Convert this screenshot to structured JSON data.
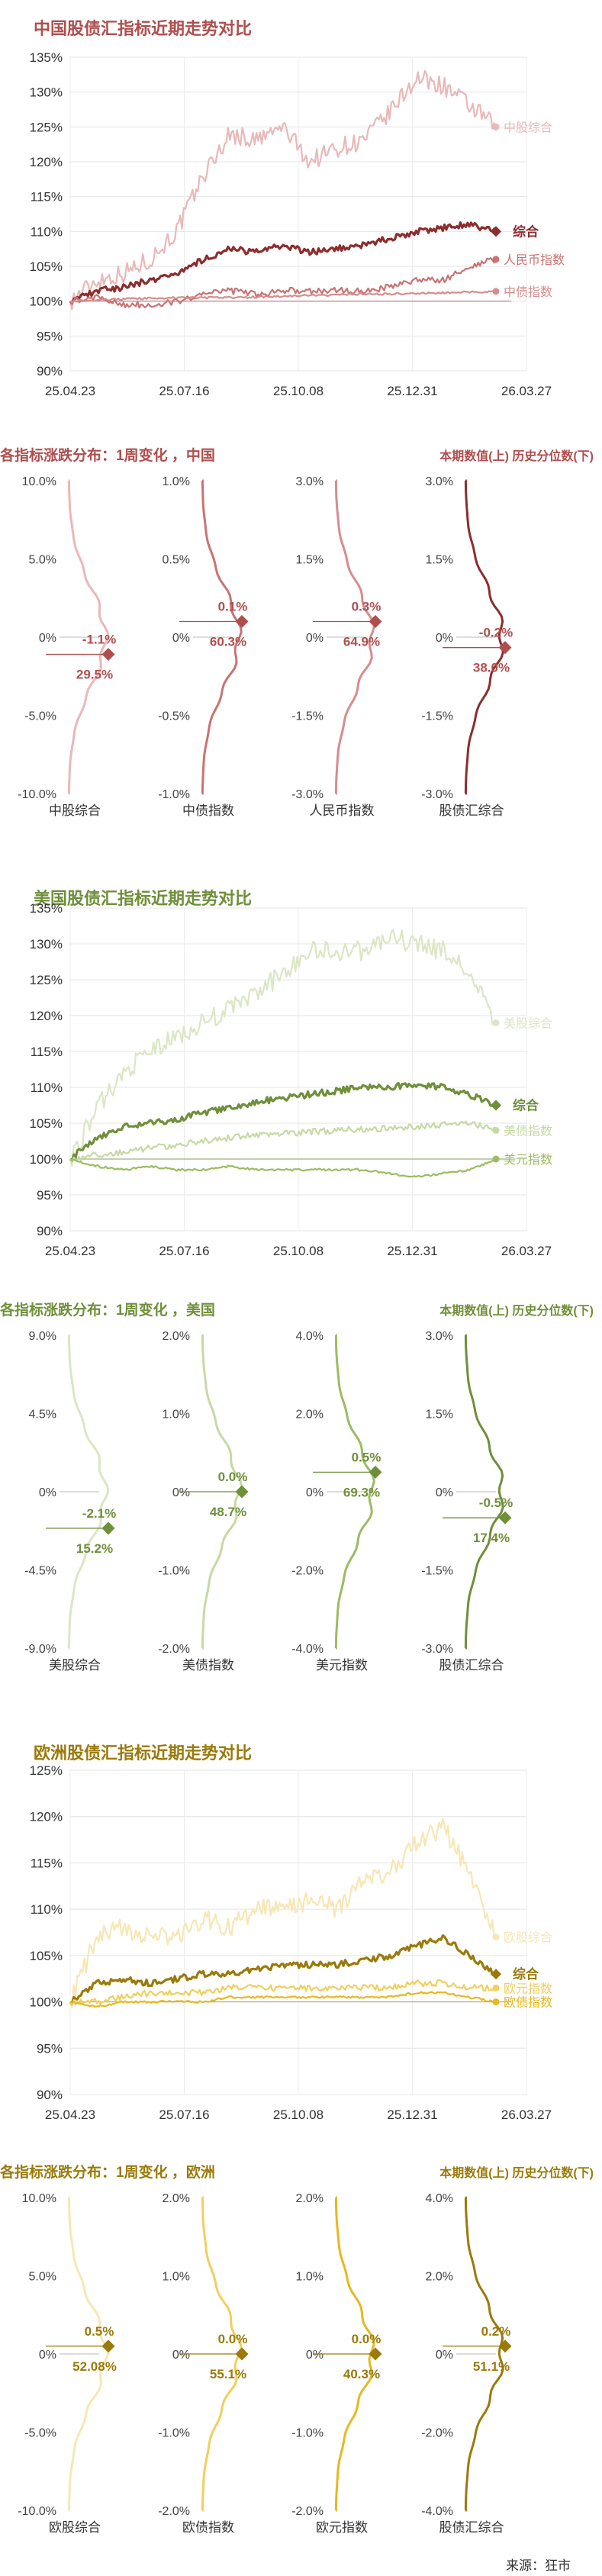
{
  "source": "来源：狂市",
  "sections": [
    {
      "theme": {
        "dark": "#b04e4e",
        "c1": "#e9b8b8",
        "c2": "#8d2d2d",
        "c3": "#c97373",
        "c4": "#d88c8c"
      },
      "trend": {
        "title": "中国股债汇指标近期走势对比",
        "ylim": [
          90,
          135
        ],
        "yticks": [
          "135%",
          "130%",
          "125%",
          "120%",
          "115%",
          "110%",
          "105%",
          "100%",
          "95%",
          "90%"
        ],
        "xticks": [
          "25.04.23",
          "25.07.16",
          "25.10.08",
          "25.12.31",
          "26.03.27"
        ]
      },
      "dist": {
        "title": "各指标涨跌分布：1周变化 ，中国",
        "legend": "本期数值(上) 历史分位数(下)",
        "panels": [
          {
            "label": "中股综合",
            "ticks": [
              "10.0%",
              "5.0%",
              "0%",
              "-5.0%",
              "-10.0%"
            ]
          },
          {
            "label": "中债指数",
            "ticks": [
              "1.0%",
              "0.5%",
              "0%",
              "-0.5%",
              "-1.0%"
            ]
          },
          {
            "label": "人民币指数",
            "ticks": [
              "3.0%",
              "1.5%",
              "0%",
              "-1.5%",
              "-3.0%"
            ]
          },
          {
            "label": "股债汇综合",
            "ticks": [
              "3.0%",
              "1.5%",
              "0%",
              "-1.5%",
              "-3.0%"
            ]
          }
        ]
      }
    },
    {
      "theme": {
        "dark": "#6f8f3a",
        "c1": "#dbe6c5",
        "c2": "#6f8f3a",
        "c3": "#c6d9a4",
        "c4": "#9cbc62"
      },
      "trend": {
        "title": "美国股债汇指标近期走势对比",
        "ylim": [
          90,
          135
        ],
        "yticks": [
          "135%",
          "130%",
          "125%",
          "120%",
          "115%",
          "110%",
          "105%",
          "100%",
          "95%",
          "90%"
        ],
        "xticks": [
          "25.04.23",
          "25.07.16",
          "25.10.08",
          "25.12.31",
          "26.03.27"
        ]
      },
      "dist": {
        "title": "各指标涨跌分布：1周变化 ，美国",
        "legend": "本期数值(上) 历史分位数(下)",
        "panels": [
          {
            "label": "美股综合",
            "ticks": [
              "9.0%",
              "4.5%",
              "0%",
              "-4.5%",
              "-9.0%"
            ]
          },
          {
            "label": "美债指数",
            "ticks": [
              "2.0%",
              "1.0%",
              "0%",
              "-1.0%",
              "-2.0%"
            ]
          },
          {
            "label": "美元指数",
            "ticks": [
              "4.0%",
              "2.0%",
              "0%",
              "-2.0%",
              "-4.0%"
            ]
          },
          {
            "label": "股债汇综合",
            "ticks": [
              "3.0%",
              "1.5%",
              "0%",
              "-1.5%",
              "-3.0%"
            ]
          }
        ]
      }
    },
    {
      "theme": {
        "dark": "#9a7a0a",
        "c1": "#f7e7b4",
        "c2": "#9a7a0a",
        "c3": "#f1cf5e",
        "c4": "#e6b922"
      },
      "trend": {
        "title": "欧洲股债汇指标近期走势对比",
        "ylim": [
          90,
          125
        ],
        "yticks": [
          "125%",
          "120%",
          "115%",
          "110%",
          "105%",
          "100%",
          "95%",
          "90%"
        ],
        "xticks": [
          "25.04.23",
          "25.07.16",
          "25.10.08",
          "25.12.31",
          "26.03.27"
        ]
      },
      "dist": {
        "title": "各指标涨跌分布：1周变化 ，欧洲",
        "legend": "本期数值(上) 历史分位数(下)",
        "panels": [
          {
            "label": "欧股综合",
            "ticks": [
              "10.0%",
              "5.0%",
              "0%",
              "-5.0%",
              "-10.0%"
            ]
          },
          {
            "label": "欧债指数",
            "ticks": [
              "2.0%",
              "1.0%",
              "0%",
              "-1.0%",
              "-2.0%"
            ]
          },
          {
            "label": "欧元指数",
            "ticks": [
              "2.0%",
              "1.0%",
              "0%",
              "-1.0%",
              "-2.0%"
            ]
          },
          {
            "label": "股债汇综合",
            "ticks": [
              "4.0%",
              "2.0%",
              "0%",
              "-2.0%",
              "-4.0%"
            ]
          }
        ]
      }
    }
  ],
  "chart_data": [
    {
      "type": "line",
      "title": "中国股债汇指标近期走势对比",
      "xlabel": "",
      "ylabel": "",
      "ylim": [
        90,
        135
      ],
      "x": [
        "25.04.23",
        "25.05.14",
        "25.06.04",
        "25.06.25",
        "25.07.16",
        "25.08.06",
        "25.08.27",
        "25.09.17",
        "25.10.08",
        "25.10.29",
        "25.11.19",
        "25.12.10",
        "25.12.31",
        "26.01.21",
        "26.02.11",
        "26.03.04",
        "26.03.27"
      ],
      "grid": true,
      "series": [
        {
          "name": "中股综合",
          "values": [
            100,
            103,
            104,
            106,
            110,
            118,
            124,
            123,
            125,
            120,
            122,
            123,
            127,
            132,
            131,
            128,
            125
          ]
        },
        {
          "name": "综合",
          "values": [
            100,
            101.5,
            102,
            103,
            104,
            106,
            107.5,
            107,
            108,
            107,
            107.5,
            108,
            109,
            110,
            110.5,
            111,
            110
          ]
        },
        {
          "name": "人民币指数",
          "values": [
            100,
            100.5,
            99.5,
            99.5,
            100,
            101,
            101.5,
            101,
            101.5,
            101.5,
            101.5,
            101.5,
            102,
            103,
            103,
            105,
            106
          ]
        },
        {
          "name": "中债指数",
          "values": [
            100,
            100.2,
            100.3,
            100.4,
            100.5,
            100.5,
            100.5,
            100.6,
            100.7,
            100.8,
            100.9,
            101,
            101,
            101.1,
            101.2,
            101.3,
            101.4
          ]
        }
      ]
    },
    {
      "type": "area",
      "title": "各指标涨跌分布：1周变化 ，中国",
      "legend": "本期数值(上) 历史分位数(下)",
      "categories": [
        "中股综合",
        "中债指数",
        "人民币指数",
        "股债汇综合"
      ],
      "series": [
        {
          "name": "本期数值",
          "values": [
            -1.1,
            0.1,
            0.3,
            -0.2
          ],
          "labels": [
            "-1.1%",
            "0.1%",
            "0.3%",
            "-0.2%"
          ]
        },
        {
          "name": "历史分位数",
          "values": [
            29.5,
            60.3,
            64.9,
            38.0
          ],
          "labels": [
            "29.5%",
            "60.3%",
            "64.9%",
            "38.0%"
          ]
        }
      ],
      "ranges": [
        [
          -10,
          10
        ],
        [
          -1,
          1
        ],
        [
          -3,
          3
        ],
        [
          -3,
          3
        ]
      ]
    },
    {
      "type": "line",
      "title": "美国股债汇指标近期走势对比",
      "xlabel": "",
      "ylabel": "",
      "ylim": [
        90,
        135
      ],
      "x": [
        "25.04.23",
        "25.05.14",
        "25.06.04",
        "25.06.25",
        "25.07.16",
        "25.08.06",
        "25.08.27",
        "25.09.17",
        "25.10.08",
        "25.10.29",
        "25.11.19",
        "25.12.10",
        "25.12.31",
        "26.01.21",
        "26.02.11",
        "26.03.04",
        "26.03.27"
      ],
      "grid": true,
      "series": [
        {
          "name": "美股综合",
          "values": [
            100,
            107,
            112,
            115,
            117,
            119,
            121,
            123,
            126,
            129,
            129,
            129,
            131,
            130,
            129,
            126,
            119
          ]
        },
        {
          "name": "综合",
          "values": [
            100,
            103,
            104.5,
            105,
            105.5,
            106.5,
            107,
            108,
            108.5,
            109,
            109.5,
            110,
            110,
            110.5,
            110,
            109,
            107.5
          ]
        },
        {
          "name": "美债指数",
          "values": [
            100,
            100.5,
            101,
            101.5,
            102,
            102.5,
            103,
            103.3,
            103.5,
            103.8,
            104,
            104.2,
            104.3,
            104.5,
            104.8,
            105,
            104
          ]
        },
        {
          "name": "美元指数",
          "values": [
            100,
            99,
            98.5,
            99,
            98.5,
            98.5,
            99,
            98.5,
            98.5,
            98.5,
            98.5,
            98.5,
            98,
            97.5,
            98,
            98.5,
            100
          ]
        }
      ]
    },
    {
      "type": "area",
      "title": "各指标涨跌分布：1周变化 ，美国",
      "legend": "本期数值(上) 历史分位数(下)",
      "categories": [
        "美股综合",
        "美债指数",
        "美元指数",
        "股债汇综合"
      ],
      "series": [
        {
          "name": "本期数值",
          "values": [
            -2.1,
            0.0,
            0.5,
            -0.5
          ],
          "labels": [
            "-2.1%",
            "0.0%",
            "0.5%",
            "-0.5%"
          ]
        },
        {
          "name": "历史分位数",
          "values": [
            15.2,
            48.7,
            69.3,
            17.4
          ],
          "labels": [
            "15.2%",
            "48.7%",
            "69.3%",
            "17.4%"
          ]
        }
      ],
      "ranges": [
        [
          -9,
          9
        ],
        [
          -2,
          2
        ],
        [
          -4,
          4
        ],
        [
          -3,
          3
        ]
      ]
    },
    {
      "type": "line",
      "title": "欧洲股债汇指标近期走势对比",
      "xlabel": "",
      "ylabel": "",
      "ylim": [
        90,
        125
      ],
      "x": [
        "25.04.23",
        "25.05.14",
        "25.06.04",
        "25.06.25",
        "25.07.16",
        "25.08.06",
        "25.08.27",
        "25.09.17",
        "25.10.08",
        "25.10.29",
        "25.11.19",
        "25.12.10",
        "25.12.31",
        "26.01.21",
        "26.02.11",
        "26.03.04",
        "26.03.27"
      ],
      "grid": true,
      "series": [
        {
          "name": "欧股综合",
          "values": [
            100,
            107,
            108,
            107,
            107,
            109,
            108,
            110,
            110,
            111,
            110,
            113,
            114,
            117,
            119,
            114,
            107
          ]
        },
        {
          "name": "综合",
          "values": [
            100,
            102,
            102.5,
            102,
            102.5,
            103,
            103,
            103.5,
            104,
            104,
            104,
            104.5,
            105,
            106,
            107,
            105,
            103
          ]
        },
        {
          "name": "欧元指数",
          "values": [
            100,
            100,
            100.5,
            101,
            101,
            101,
            101.5,
            101.5,
            101.5,
            101.5,
            101.5,
            101.5,
            101.5,
            102,
            102,
            101.5,
            101.5
          ]
        },
        {
          "name": "欧债指数",
          "values": [
            100,
            99.5,
            100,
            100,
            100,
            100,
            100.5,
            100.5,
            100.5,
            100.5,
            100.5,
            100.5,
            100.5,
            101,
            101,
            100.5,
            100
          ]
        }
      ]
    },
    {
      "type": "area",
      "title": "各指标涨跌分布：1周变化 ，欧洲",
      "legend": "本期数值(上) 历史分位数(下)",
      "categories": [
        "欧股综合",
        "欧债指数",
        "欧元指数",
        "股债汇综合"
      ],
      "series": [
        {
          "name": "本期数值",
          "values": [
            0.5,
            0.0,
            0.0,
            0.2
          ],
          "labels": [
            "0.5%",
            "0.0%",
            "0.0%",
            "0.2%"
          ]
        },
        {
          "name": "历史分位数",
          "values": [
            52.08,
            55.1,
            40.3,
            51.1
          ],
          "labels": [
            "52.08%",
            "55.1%",
            "40.3%",
            "51.1%"
          ]
        }
      ],
      "ranges": [
        [
          -10,
          10
        ],
        [
          -2,
          2
        ],
        [
          -2,
          2
        ],
        [
          -4,
          4
        ]
      ]
    }
  ]
}
